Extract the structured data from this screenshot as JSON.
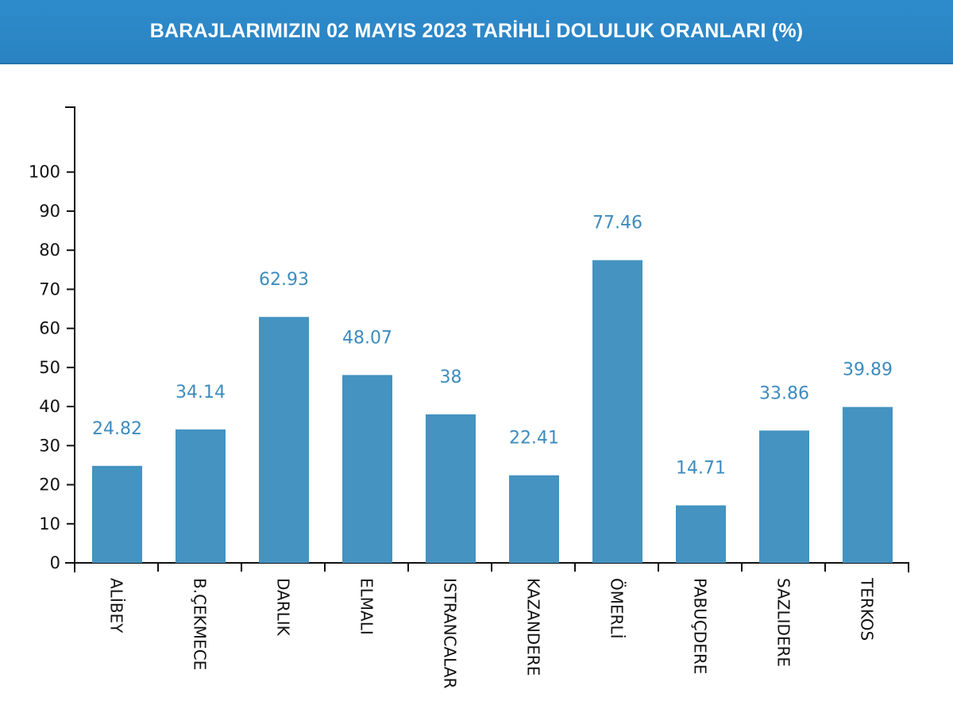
{
  "header": {
    "title": "BARAJLARIMIZIN 02 MAYIS 2023 TARİHLİ DOLULUK ORANLARI (%)"
  },
  "chart_data": {
    "type": "bar",
    "title": "BARAJLARIMIZIN 02 MAYIS 2023 TARİHLİ DOLULUK ORANLARI (%)",
    "categories": [
      "ALİBEY",
      "B.ÇEKMECE",
      "DARLIK",
      "ELMALI",
      "ISTRANCALAR",
      "KAZANDERE",
      "ÖMERLİ",
      "PABUÇDERE",
      "SAZLIDERE",
      "TERKOS"
    ],
    "values": [
      24.82,
      34.14,
      62.93,
      48.07,
      38,
      22.41,
      77.46,
      14.71,
      33.86,
      39.89
    ],
    "value_labels": [
      "24.82",
      "34.14",
      "62.93",
      "48.07",
      "38",
      "22.41",
      "77.46",
      "14.71",
      "33.86",
      "39.89"
    ],
    "yticks": [
      0,
      10,
      20,
      30,
      40,
      50,
      60,
      70,
      80,
      90,
      100
    ],
    "ylim": [
      0,
      116.6
    ],
    "xlabel": "",
    "ylabel": "",
    "grid": false,
    "bar_color": "#4493c1",
    "label_color": "#3d8cbf"
  }
}
